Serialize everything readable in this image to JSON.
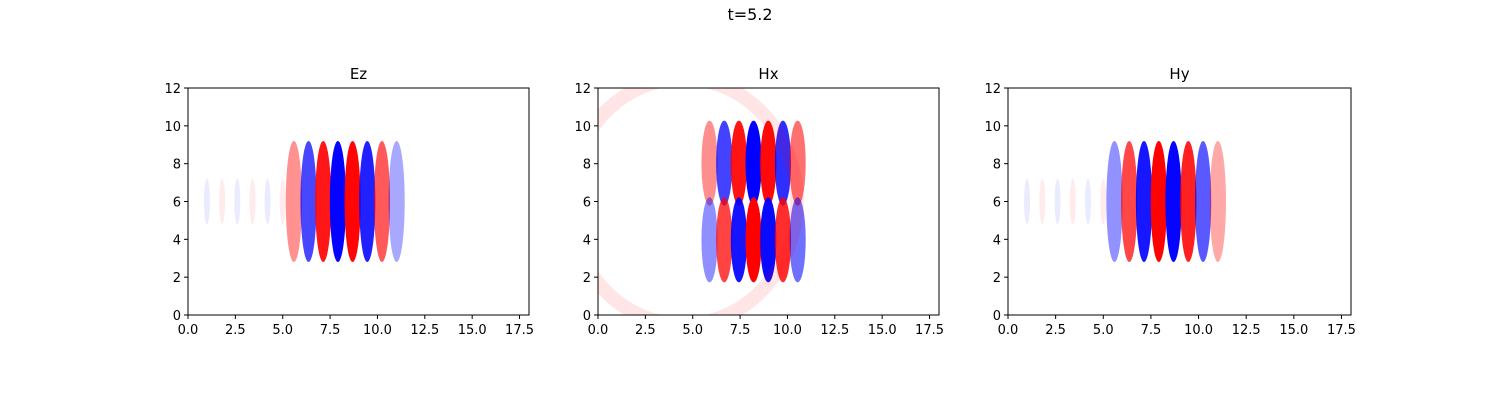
{
  "figure": {
    "suptitle": "t=5.2"
  },
  "chart_data": [
    {
      "type": "heatmap",
      "title": "Ez",
      "xlim": [
        0,
        18
      ],
      "ylim": [
        0,
        12
      ],
      "xticks": [
        "0.0",
        "2.5",
        "5.0",
        "7.5",
        "10.0",
        "12.5",
        "15.0",
        "17.5"
      ],
      "yticks": [
        "0",
        "2",
        "4",
        "6",
        "8",
        "10",
        "12"
      ],
      "colormap": {
        "negative": "#0000ff",
        "zero": "#ffffff",
        "positive": "#ff0000"
      },
      "field": {
        "pattern": "vertical-bands",
        "x_range": [
          5.2,
          11.2
        ],
        "y_center": 6,
        "y_halfwidth": 3.2,
        "band_spacing": 1.55,
        "first_band": "red"
      }
    },
    {
      "type": "heatmap",
      "title": "Hx",
      "xlim": [
        0,
        18
      ],
      "ylim": [
        0,
        12
      ],
      "xticks": [
        "0.0",
        "2.5",
        "5.0",
        "7.5",
        "10.0",
        "12.5",
        "15.0",
        "17.5"
      ],
      "yticks": [
        "0",
        "2",
        "4",
        "6",
        "8",
        "10",
        "12"
      ],
      "colormap": {
        "negative": "#0000ff",
        "zero": "#ffffff",
        "positive": "#ff0000"
      },
      "field": {
        "pattern": "split-bands",
        "x_range": [
          5.5,
          11.2
        ],
        "y_center": 6,
        "y_halfwidth": 4.5,
        "band_spacing": 1.55,
        "first_band_upper": "red",
        "first_band_lower": "blue"
      }
    },
    {
      "type": "heatmap",
      "title": "Hy",
      "xlim": [
        0,
        18
      ],
      "ylim": [
        0,
        12
      ],
      "xticks": [
        "0.0",
        "2.5",
        "5.0",
        "7.5",
        "10.0",
        "12.5",
        "15.0",
        "17.5"
      ],
      "yticks": [
        "0",
        "2",
        "4",
        "6",
        "8",
        "10",
        "12"
      ],
      "colormap": {
        "negative": "#0000ff",
        "zero": "#ffffff",
        "positive": "#ff0000"
      },
      "field": {
        "pattern": "vertical-bands",
        "x_range": [
          5.2,
          11.2
        ],
        "y_center": 6,
        "y_halfwidth": 3.2,
        "band_spacing": 1.55,
        "first_band": "blue"
      }
    }
  ]
}
